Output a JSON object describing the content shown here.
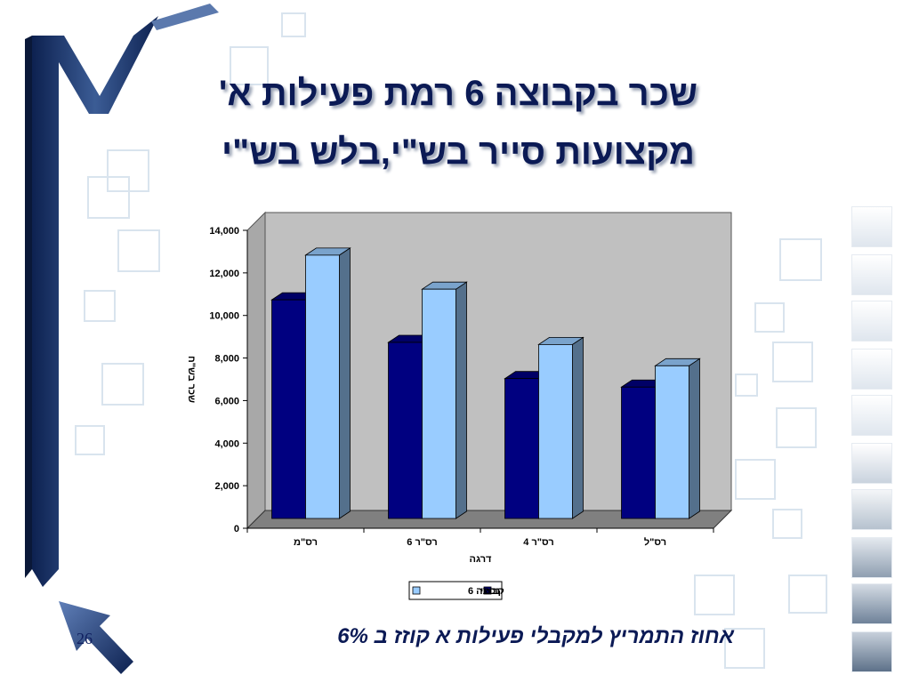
{
  "slide": {
    "title_line1": "שכר בקבוצה 6 רמת פעילות א'",
    "title_line2": "מקצועות סייר בש\"י,בלש בש\"י",
    "footnote": "אחוז התמריץ למקבלי פעילות א קוזז ב 6%",
    "slide_number": "26"
  },
  "chart_data": {
    "type": "bar",
    "categories": [
      "רס\"מ",
      "רס\"ר 6",
      "רס\"ר 4",
      "רס\"ל"
    ],
    "series": [
      {
        "name": "נכחי",
        "values": [
          10400,
          8400,
          6700,
          6300
        ],
        "color": "#000080"
      },
      {
        "name": "קבוצה 6",
        "values": [
          12500,
          10900,
          8300,
          7300
        ],
        "color": "#99ccff"
      }
    ],
    "xlabel": "דרגה",
    "ylabel": "שכר בש\"ח",
    "ylim": [
      0,
      14000
    ],
    "yticks": [
      "0",
      "2,000",
      "4,000",
      "6,000",
      "8,000",
      "10,000",
      "12,000",
      "14,000"
    ],
    "grid": false,
    "legend_position": "bottom",
    "wall_color": "#c0c0c0",
    "floor_color": "#808080"
  }
}
